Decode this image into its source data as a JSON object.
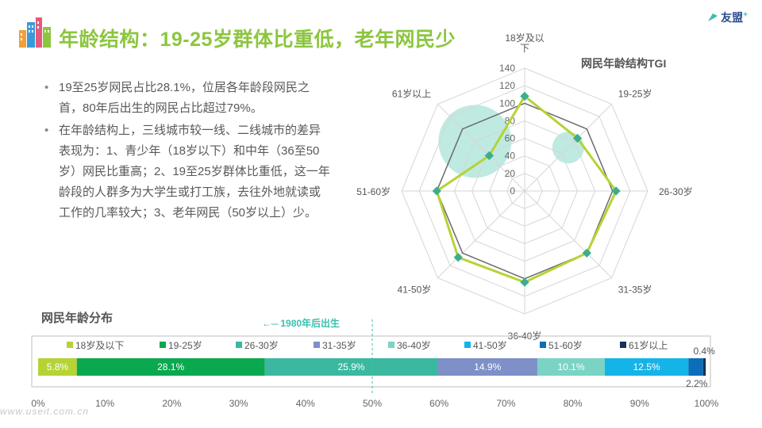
{
  "header": {
    "title": "年龄结构：19-25岁群体比重低，老年网民少",
    "brand": "友盟",
    "brand_plus": "+"
  },
  "bullets": [
    "19至25岁网民占比28.1%，位居各年龄段网民之首，80年后出生的网民占比超过79%。",
    "在年龄结构上，三线城市较一线、二线城市的差异表现为：1、青少年（18岁以下）和中年（36至50岁）网民比重高；2、19至25岁群体比重低，这一年龄段的人群多为大学生或打工族，去往外地就读或工作的几率较大；3、老年网民（50岁以上）少。"
  ],
  "colors": {
    "title": "#8cc63f",
    "radar_line": "#b5d334",
    "radar_marker": "#3bae8e",
    "radar_ref": "#6b6b6b",
    "bubble": "#a8e3d8"
  },
  "watermark": "www.useit.com.cn",
  "chart_data": [
    {
      "type": "radar",
      "title": "网民年龄结构TGI",
      "categories": [
        "18岁及以下",
        "19-25岁",
        "26-30岁",
        "31-35岁",
        "36-40岁",
        "41-50岁",
        "51-60岁",
        "61岁以上"
      ],
      "category_label_lines": [
        [
          "18岁及以",
          "下"
        ],
        [
          "19-25岁"
        ],
        [
          "26-30岁"
        ],
        [
          "31-35岁"
        ],
        [
          "36-40岁"
        ],
        [
          "41-50岁"
        ],
        [
          "51-60岁"
        ],
        [
          "61岁以上"
        ]
      ],
      "rlim": [
        0,
        140
      ],
      "ticks": [
        0,
        20,
        40,
        60,
        80,
        100,
        120,
        140
      ],
      "series": [
        {
          "values": [
            108,
            85,
            104,
            100,
            104,
            107,
            100,
            57
          ]
        },
        {
          "values": [
            100,
            100,
            100,
            100,
            100,
            100,
            100,
            100
          ]
        }
      ],
      "bubbles": [
        {
          "category": "19-25岁",
          "value": 70,
          "size": 1
        },
        {
          "category": "61岁以上",
          "value": 80,
          "size": 2.3
        }
      ],
      "grid": true
    },
    {
      "type": "bar",
      "orientation": "horizontal-stacked",
      "title": "网民年龄分布",
      "categories": [
        "18岁及以下",
        "19-25岁",
        "26-30岁",
        "31-35岁",
        "36-40岁",
        "41-50岁",
        "51-60岁",
        "61岁以上"
      ],
      "values": [
        5.8,
        28.1,
        25.9,
        14.9,
        10.1,
        12.5,
        2.2,
        0.4
      ],
      "value_labels": [
        "5.8%",
        "28.1%",
        "25.9%",
        "14.9%",
        "10.1%",
        "12.5%",
        "2.2%",
        "0.4%"
      ],
      "colors": [
        "#b5d334",
        "#0aa84f",
        "#3bb8a0",
        "#7f8fc8",
        "#7ad3c4",
        "#14b4e8",
        "#0a6fb8",
        "#13335a"
      ],
      "xlim": [
        0,
        100
      ],
      "xticks": [
        "0%",
        "10%",
        "20%",
        "30%",
        "40%",
        "50%",
        "60%",
        "70%",
        "80%",
        "90%",
        "100%"
      ],
      "legend": "top",
      "annotation": {
        "text": "1980年后出生",
        "x": 50
      }
    }
  ]
}
